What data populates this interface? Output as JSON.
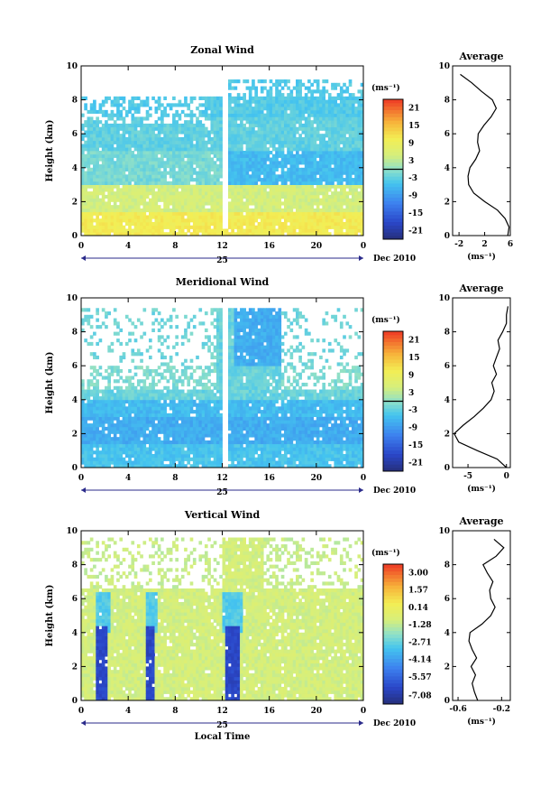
{
  "chart_data": [
    {
      "type": "heatmap",
      "title": "Zonal Wind",
      "xlabel": "",
      "ylabel": "Height (km)",
      "xticks": [
        "0",
        "4",
        "8",
        "12",
        "16",
        "20",
        "0"
      ],
      "yticks": [
        "0",
        "2",
        "4",
        "6",
        "8",
        "10"
      ],
      "xlim": [
        0,
        24
      ],
      "ylim": [
        0,
        10
      ],
      "date_center": "25",
      "date_right": "Dec 2010",
      "colorbar": {
        "unit": "(ms⁻¹)",
        "labels": [
          "-21",
          "-15",
          "-9",
          "-3",
          "3",
          "9",
          "15",
          "21"
        ],
        "min": -24,
        "max": 24
      },
      "profile": {
        "title": "Average",
        "xticks": [
          "-2",
          "2",
          "6"
        ],
        "xlim": [
          -3,
          6
        ],
        "xlabel": "(ms⁻¹)",
        "height": [
          0,
          0.5,
          1,
          1.5,
          2,
          2.5,
          3,
          3.5,
          4,
          4.5,
          5,
          5.5,
          6,
          6.5,
          7,
          7.5,
          8,
          8.5,
          9,
          9.5
        ],
        "value": [
          5.6,
          5.8,
          5.2,
          4,
          2,
          0.3,
          -0.5,
          -0.6,
          -0.3,
          0.6,
          1.2,
          0.9,
          1,
          1.9,
          3,
          3.8,
          3.2,
          1.5,
          0,
          -1.8
        ]
      }
    },
    {
      "type": "heatmap",
      "title": "Meridional Wind",
      "xlabel": "",
      "ylabel": "Height (km)",
      "xticks": [
        "0",
        "4",
        "8",
        "12",
        "16",
        "20",
        "0"
      ],
      "yticks": [
        "0",
        "2",
        "4",
        "6",
        "8",
        "10"
      ],
      "xlim": [
        0,
        24
      ],
      "ylim": [
        0,
        10
      ],
      "date_center": "25",
      "date_right": "Dec 2010",
      "colorbar": {
        "unit": "(ms⁻¹)",
        "labels": [
          "-21",
          "-15",
          "-9",
          "-3",
          "3",
          "9",
          "15",
          "21"
        ],
        "min": -24,
        "max": 24
      },
      "profile": {
        "title": "Average",
        "xticks": [
          "-5",
          "0"
        ],
        "xlim": [
          -7,
          0.5
        ],
        "xlabel": "(ms⁻¹)",
        "height": [
          0,
          0.5,
          1,
          1.5,
          2,
          2.5,
          3,
          3.5,
          4,
          4.5,
          5,
          5.5,
          6,
          6.5,
          7,
          7.5,
          8,
          8.5,
          9,
          9.5
        ],
        "value": [
          0,
          -1.2,
          -3.8,
          -6.2,
          -6.8,
          -5.6,
          -4.2,
          -3,
          -2,
          -1.6,
          -1.9,
          -1.3,
          -1.7,
          -1.3,
          -0.9,
          -1.1,
          -0.5,
          0,
          0,
          0.2
        ]
      }
    },
    {
      "type": "heatmap",
      "title": "Vertical Wind",
      "xlabel": "Local Time",
      "ylabel": "Height (km)",
      "xticks": [
        "0",
        "4",
        "8",
        "12",
        "16",
        "20",
        "0"
      ],
      "yticks": [
        "0",
        "2",
        "4",
        "6",
        "8",
        "10"
      ],
      "xlim": [
        0,
        24
      ],
      "ylim": [
        0,
        10
      ],
      "date_center": "25",
      "date_right": "Dec 2010",
      "colorbar": {
        "unit": "(ms⁻¹)",
        "labels": [
          "-7.08",
          "-5.57",
          "-4.14",
          "-2.71",
          "-1.28",
          "0.14",
          "1.57",
          "3.00"
        ],
        "min": -7.8,
        "max": 3.7
      },
      "profile": {
        "title": "Average",
        "xticks": [
          "-0.6",
          "-0.2"
        ],
        "xlim": [
          -0.65,
          -0.12
        ],
        "xlabel": "(ms⁻¹)",
        "height": [
          0,
          0.5,
          1,
          1.5,
          2,
          2.5,
          3,
          3.5,
          4,
          4.5,
          5,
          5.5,
          6,
          6.5,
          7,
          7.5,
          8,
          8.5,
          9,
          9.5
        ],
        "value": [
          -0.42,
          -0.45,
          -0.47,
          -0.44,
          -0.48,
          -0.43,
          -0.47,
          -0.5,
          -0.49,
          -0.38,
          -0.3,
          -0.26,
          -0.3,
          -0.31,
          -0.28,
          -0.33,
          -0.37,
          -0.25,
          -0.18,
          -0.27
        ]
      }
    }
  ]
}
